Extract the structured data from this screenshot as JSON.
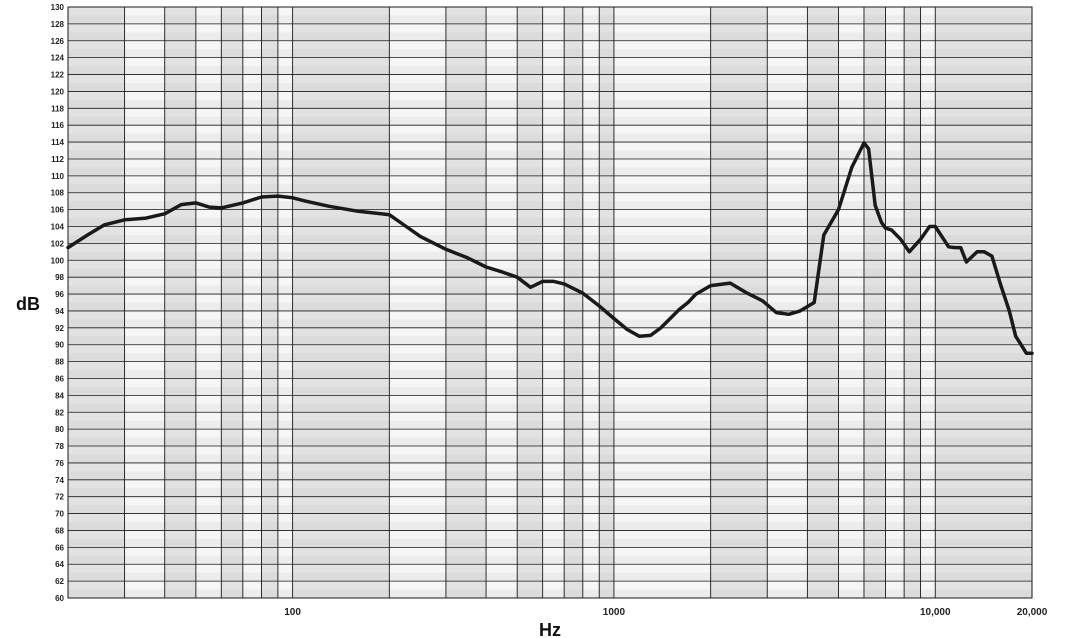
{
  "chart_data": {
    "type": "line",
    "xlabel": "Hz",
    "ylabel": "dB",
    "x_scale": "log",
    "xlim": [
      20,
      20000
    ],
    "ylim": [
      60,
      130
    ],
    "grid": true,
    "y_ticks": [
      60,
      62,
      64,
      66,
      68,
      70,
      72,
      74,
      76,
      78,
      80,
      82,
      84,
      86,
      88,
      90,
      92,
      94,
      96,
      98,
      100,
      102,
      104,
      106,
      108,
      110,
      112,
      114,
      116,
      118,
      120,
      122,
      124,
      126,
      128,
      130
    ],
    "y_tick_labels": [
      "60",
      "62",
      "64",
      "66",
      "68",
      "70",
      "72",
      "74",
      "76",
      "78",
      "80",
      "82",
      "84",
      "86",
      "88",
      "90",
      "92",
      "94",
      "96",
      "98",
      "100",
      "102",
      "104",
      "106",
      "108",
      "110",
      "112",
      "114",
      "116",
      "118",
      "120",
      "122",
      "124",
      "126",
      "128",
      "130"
    ],
    "x_ticks": [
      100,
      1000,
      10000,
      20000
    ],
    "x_tick_labels": [
      "100",
      "1000",
      "10,000",
      "20,000"
    ],
    "x_gridlines": [
      30,
      40,
      50,
      60,
      70,
      80,
      90,
      100,
      200,
      300,
      400,
      500,
      600,
      700,
      800,
      900,
      1000,
      2000,
      3000,
      4000,
      5000,
      6000,
      7000,
      8000,
      9000,
      10000
    ],
    "shaded_bands": [
      [
        20,
        30
      ],
      [
        40,
        50
      ],
      [
        60,
        70
      ],
      [
        80,
        90
      ],
      [
        100,
        200
      ],
      [
        300,
        400
      ],
      [
        500,
        600
      ],
      [
        700,
        800
      ],
      [
        900,
        1000
      ],
      [
        2000,
        3000
      ],
      [
        4000,
        5000
      ],
      [
        6000,
        7000
      ],
      [
        8000,
        9000
      ],
      [
        10000,
        20000
      ]
    ],
    "series": [
      {
        "x": [
          20,
          23,
          26,
          30,
          35,
          40,
          45,
          50,
          55,
          60,
          70,
          80,
          90,
          100,
          110,
          130,
          160,
          200,
          220,
          250,
          300,
          350,
          400,
          450,
          500,
          550,
          600,
          650,
          700,
          800,
          900,
          1000,
          1100,
          1200,
          1300,
          1400,
          1600,
          1700,
          1800,
          2000,
          2300,
          2600,
          2900,
          3200,
          3500,
          3800,
          4200,
          4500,
          5000,
          5500,
          6000,
          6200,
          6500,
          6800,
          7000,
          7300,
          7800,
          8300,
          9000,
          9600,
          10000,
          11000,
          11500,
          12000,
          12500,
          13500,
          14200,
          15000,
          16000,
          17000,
          17800,
          18500,
          19200,
          20000
        ],
        "y": [
          101.5,
          103.0,
          104.2,
          104.8,
          105.0,
          105.5,
          106.6,
          106.8,
          106.3,
          106.2,
          106.8,
          107.5,
          107.6,
          107.4,
          107.0,
          106.4,
          105.8,
          105.4,
          104.3,
          102.8,
          101.3,
          100.3,
          99.2,
          98.6,
          98.0,
          96.8,
          97.5,
          97.5,
          97.2,
          96.1,
          94.6,
          93.1,
          91.8,
          91.0,
          91.1,
          92.0,
          94.2,
          95.0,
          96.0,
          97.0,
          97.3,
          96.1,
          95.2,
          93.8,
          93.6,
          94.0,
          95.0,
          103.0,
          106.0,
          111.0,
          113.9,
          113.2,
          106.5,
          104.5,
          103.8,
          103.6,
          102.5,
          101.0,
          102.5,
          104.0,
          104.0,
          101.6,
          101.5,
          101.5,
          99.8,
          101.0,
          101.0,
          100.5,
          97.0,
          94.0,
          91.0,
          90.0,
          89.0,
          89.0
        ]
      }
    ]
  },
  "colors": {
    "band_dark": "#d9d9d9",
    "band_light": "#ececec",
    "grid_line": "#1a1a1a",
    "curve": "#1a1a1a"
  }
}
